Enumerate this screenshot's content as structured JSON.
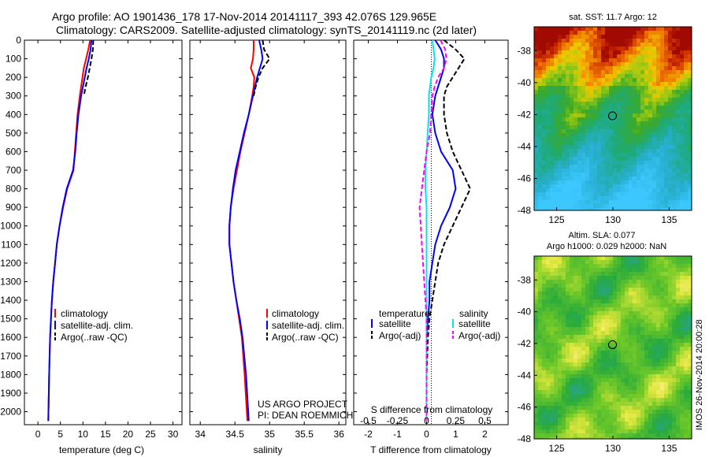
{
  "title": {
    "line1": "Argo profile: AO 1901436_178 17-Nov-2014 20141117_393 42.076S 129.965E",
    "line2": "Climatology: CARS2009. Satellite-adjusted climatology: synTS_20141119.nc (2d later)"
  },
  "timestamp": "IMOS 26-Nov-2014 20:00:28",
  "colors": {
    "climatology": "#ff0000",
    "satellite": "#0000ff",
    "argo": "#000000",
    "satellite_diff": "#00e5ee",
    "argo_diff_salinity": "#ff00ff"
  },
  "chart_data": [
    {
      "type": "line",
      "panel": "temperature",
      "xlabel": "temperature (deg C)",
      "xlim": [
        -3,
        32
      ],
      "ylim": [
        0,
        2070
      ],
      "y_reversed": true,
      "xticks": [
        0,
        5,
        10,
        15,
        20,
        25,
        30
      ],
      "yticks": [
        0,
        100,
        200,
        300,
        400,
        500,
        600,
        700,
        800,
        900,
        1000,
        1100,
        1200,
        1300,
        1400,
        1500,
        1600,
        1700,
        1800,
        1900,
        2000
      ],
      "legend": [
        "climatology",
        "satellite-adj. clim.",
        "Argo(..raw -QC)"
      ],
      "depth": [
        0,
        50,
        100,
        150,
        200,
        250,
        300,
        400,
        500,
        600,
        700,
        800,
        900,
        1000,
        1100,
        1200,
        1300,
        1400,
        1500,
        1600,
        1800,
        2050
      ],
      "series": [
        {
          "name": "climatology",
          "values": [
            11.6,
            11.2,
            10.7,
            10.2,
            9.9,
            9.6,
            9.3,
            8.8,
            8.5,
            8.2,
            7.9,
            6.5,
            5.6,
            4.8,
            4.2,
            3.8,
            3.4,
            3.1,
            2.9,
            2.7,
            2.5,
            2.3
          ]
        },
        {
          "name": "satellite-adj. clim.",
          "values": [
            11.9,
            11.7,
            11.3,
            10.8,
            10.4,
            10.0,
            9.6,
            9.0,
            8.6,
            8.3,
            7.8,
            6.4,
            5.5,
            4.8,
            4.2,
            3.8,
            3.4,
            3.1,
            2.9,
            2.7,
            2.5,
            2.3
          ]
        },
        {
          "name": "Argo(..raw -QC)",
          "values": [
            12.3,
            12.2,
            11.9,
            11.5,
            11.1,
            10.6,
            10.2
          ]
        }
      ]
    },
    {
      "type": "line",
      "panel": "salinity",
      "xlabel": "salinity",
      "xlim": [
        33.85,
        36.1
      ],
      "ylim": [
        0,
        2070
      ],
      "y_reversed": true,
      "xticks": [
        34,
        34.5,
        35,
        35.5,
        36
      ],
      "xticklabels": [
        "34",
        "34.5",
        "35",
        "35.5",
        "36"
      ],
      "legend": [
        "climatology",
        "satellite-adj. clim.",
        "Argo(..raw -QC)"
      ],
      "depth": [
        0,
        50,
        100,
        150,
        200,
        250,
        300,
        400,
        500,
        600,
        700,
        800,
        900,
        1000,
        1100,
        1200,
        1300,
        1400,
        1500,
        1600,
        1800,
        2050
      ],
      "series": [
        {
          "name": "climatology",
          "values": [
            34.77,
            34.77,
            34.76,
            34.73,
            34.78,
            34.77,
            34.75,
            34.7,
            34.64,
            34.58,
            34.53,
            34.48,
            34.44,
            34.42,
            34.42,
            34.45,
            34.48,
            34.52,
            34.56,
            34.6,
            34.64,
            34.68
          ]
        },
        {
          "name": "satellite-adj. clim.",
          "values": [
            34.85,
            34.88,
            34.9,
            34.86,
            34.82,
            34.79,
            34.76,
            34.7,
            34.63,
            34.57,
            34.51,
            34.47,
            34.44,
            34.42,
            34.42,
            34.45,
            34.48,
            34.52,
            34.57,
            34.61,
            34.66,
            34.7
          ]
        },
        {
          "name": "Argo(..raw -QC)",
          "values": [
            34.9,
            34.92,
            35.0,
            34.9,
            34.84,
            34.8,
            34.77
          ]
        }
      ],
      "annotation": [
        "US ARGO PROJECT",
        "PI: DEAN ROEMMICH"
      ]
    },
    {
      "type": "line",
      "panel": "difference",
      "xlabel": "T difference from climatology",
      "xlabel_top": "S difference from climatology",
      "xlim": [
        -2.5,
        2.8
      ],
      "ylim": [
        0,
        2070
      ],
      "y_reversed": true,
      "xticks": [
        -2,
        -1,
        0,
        1,
        2
      ],
      "xticks_top": [
        "-0.5",
        "-0.25",
        "0",
        "0.25",
        "0.5"
      ],
      "legend": {
        "temperature_header": "temperature",
        "salinity_header": "salinity",
        "items": [
          "satellite",
          "Argo(-adj)",
          "satellite",
          "Argo(-adj)"
        ]
      },
      "depth": [
        0,
        50,
        100,
        150,
        200,
        250,
        300,
        400,
        500,
        600,
        700,
        800,
        900,
        1000,
        1100,
        1200,
        1300,
        1400,
        1500,
        1600,
        1800,
        2050
      ],
      "series": [
        {
          "name": "temperature satellite",
          "values": [
            0.3,
            0.5,
            0.6,
            0.6,
            0.5,
            0.4,
            0.3,
            0.2,
            0.3,
            0.5,
            0.9,
            1.0,
            0.8,
            0.5,
            0.3,
            0.2,
            0.1,
            0.1,
            0.05,
            0.0,
            0.0,
            0.0
          ]
        },
        {
          "name": "temperature Argo(-adj)",
          "values": [
            0.6,
            1.0,
            1.3,
            1.1,
            0.9,
            0.7,
            0.6,
            0.6,
            0.7,
            0.9,
            1.2,
            1.5,
            1.2,
            0.9,
            0.6,
            0.4,
            0.3,
            0.2,
            0.1,
            0.05,
            0.0,
            0.0
          ]
        },
        {
          "name": "salinity satellite",
          "values": [
            0.05,
            0.06,
            0.07,
            0.06,
            0.04,
            0.03,
            0.02,
            0.02,
            0.01,
            0.0,
            -0.01,
            -0.01,
            0.0,
            0.0,
            0.0,
            0.0,
            0.0,
            0.0,
            0.0,
            0.0,
            0.0,
            0.0
          ]
        },
        {
          "name": "salinity Argo(-adj)",
          "values": [
            0.12,
            0.16,
            0.17,
            0.15,
            0.1,
            0.07,
            0.05,
            0.04,
            0.03,
            0.0,
            -0.02,
            -0.04,
            -0.06,
            -0.05,
            -0.04,
            -0.03,
            -0.02,
            -0.01,
            0.0,
            0.0,
            0.0,
            0.0
          ]
        }
      ]
    },
    {
      "type": "heatmap",
      "panel": "sst-map",
      "title": "sat. SST: 11.7 Argo: 12",
      "xlim": [
        123,
        137
      ],
      "ylim": [
        -48,
        -36.5
      ],
      "xticks": [
        125,
        130,
        135
      ],
      "yticks": [
        -38,
        -40,
        -42,
        -44,
        -46,
        -48
      ],
      "marker": {
        "lon": 129.965,
        "lat": -42.076
      }
    },
    {
      "type": "heatmap",
      "panel": "sla-map",
      "title_lines": [
        "Altim. SLA: 0.077",
        "Argo h1000: 0.029 h2000: NaN"
      ],
      "xlim": [
        123,
        137
      ],
      "ylim": [
        -48,
        -36.5
      ],
      "xticks": [
        125,
        130,
        135
      ],
      "yticks": [
        -38,
        -40,
        -42,
        -44,
        -46,
        -48
      ],
      "marker": {
        "lon": 129.965,
        "lat": -42.076
      }
    }
  ]
}
